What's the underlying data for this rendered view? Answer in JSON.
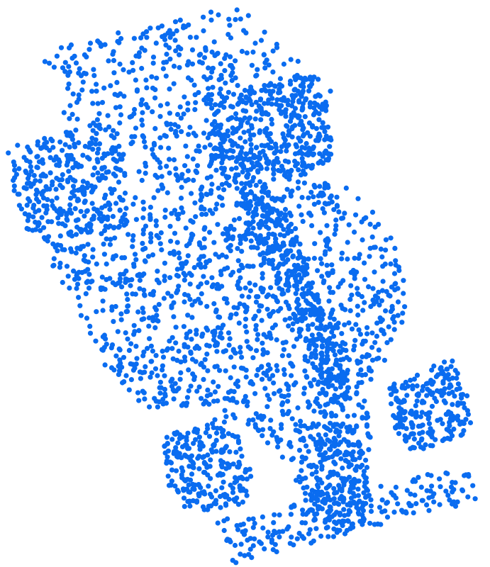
{
  "image": {
    "description_hidden": "",
    "background_color": "#ffffff",
    "dot_color": "#0a6cf0"
  }
}
